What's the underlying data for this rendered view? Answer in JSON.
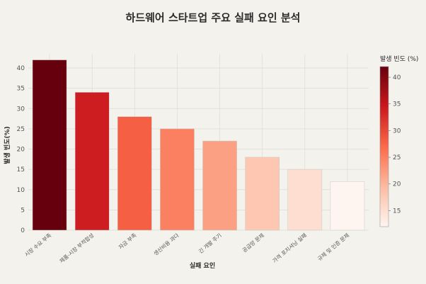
{
  "chart_data": {
    "type": "bar",
    "title": "하드웨어 스타트업 주요 실패 요인 분석",
    "xlabel": "실패 요인",
    "ylabel": "발생 빈도(%)",
    "categories": [
      "시장 수요 부족",
      "제품-시장 부적합성",
      "자금 부족",
      "생산비용 과다",
      "긴 개발 주기",
      "공급망 문제",
      "가격 포지셔닝 실패",
      "규제 및 인증 문제"
    ],
    "values": [
      42,
      34,
      28,
      25,
      22,
      18,
      15,
      12
    ],
    "ylim": [
      0,
      43.5
    ],
    "yticks": [
      0,
      5,
      10,
      15,
      20,
      25,
      30,
      35,
      40
    ],
    "grid": true,
    "colorbar": {
      "title": "발생 빈도 (%)",
      "range": [
        12,
        42
      ],
      "ticks": [
        15,
        20,
        25,
        30,
        35,
        40
      ],
      "colors": [
        "#fff5f0",
        "#fcbba1",
        "#fb6a4a",
        "#cb181d",
        "#67000d"
      ]
    }
  }
}
